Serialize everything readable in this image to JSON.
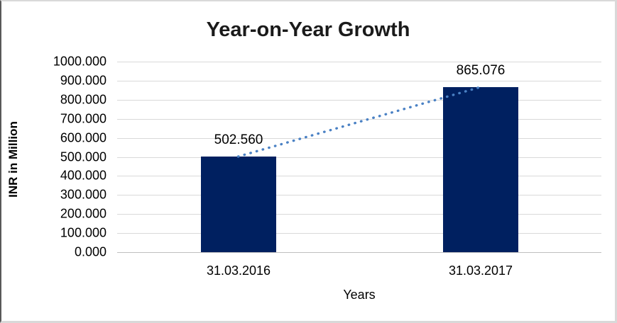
{
  "chart_data": {
    "type": "bar",
    "title": "Year-on-Year Growth",
    "categories": [
      "31.03.2016",
      "31.03.2017"
    ],
    "values": [
      502.56,
      865.076
    ],
    "data_labels": [
      "502.560",
      "865.076"
    ],
    "xlabel": "Years",
    "ylabel": "INR in Million",
    "ylim": [
      0,
      1000
    ],
    "ytick_step": 100,
    "ytick_labels_top_to_bottom": [
      "1000.000",
      "900.000",
      "800.000",
      "700.000",
      "600.000",
      "500.000",
      "400.000",
      "300.000",
      "200.000",
      "100.000",
      "0.000"
    ],
    "grid": true,
    "legend": "none",
    "trendline": {
      "style": "dotted",
      "connects": [
        "31.03.2016",
        "31.03.2017"
      ],
      "color": "#4a81c4"
    },
    "colors": {
      "bar_fill": "#002060",
      "gridline": "#d9d9d9",
      "axis_line": "#bfbfbf",
      "text": "#000000",
      "title_text": "#1a1a1a",
      "trend_dots": "#4a81c4"
    }
  }
}
